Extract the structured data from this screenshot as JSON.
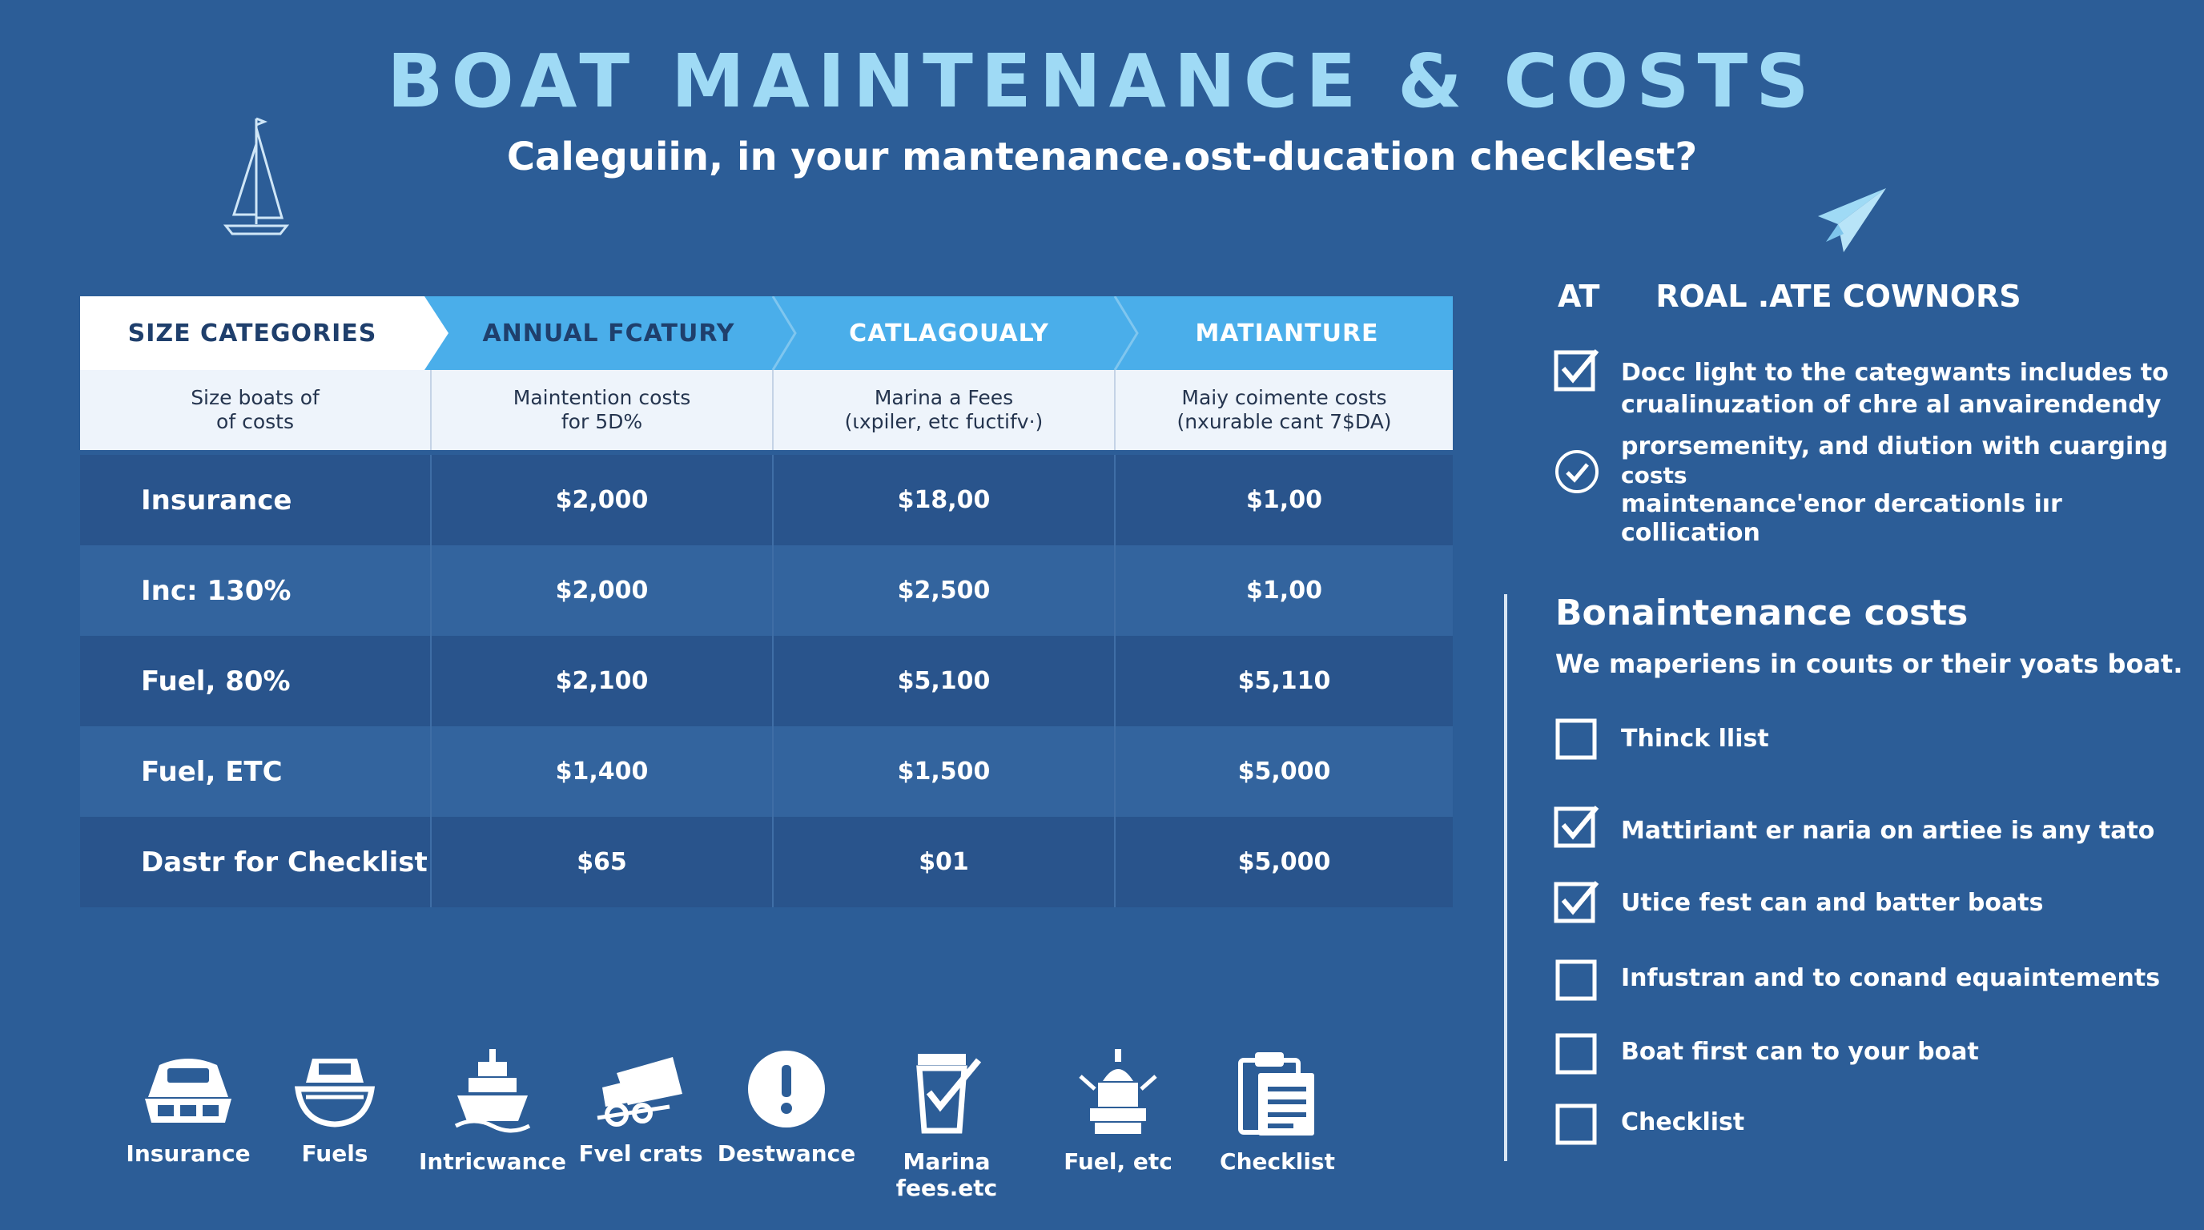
{
  "header": {
    "title": "BOAT MAINTENANCE & COSTS",
    "subtitle": "Caleguiin, in your mantenance.ost-ducation checklest?"
  },
  "table": {
    "headers": [
      "SIZE CATEGORIES",
      "ANNUAL FCATURY",
      "CATLAGOUALY",
      "MATIANTURE"
    ],
    "subheaders": [
      [
        "Size boats of",
        "of costs"
      ],
      [
        "Maintention costs",
        "for 5D%"
      ],
      [
        "Marina a Fees",
        "(ιxpiler, etc fuctifv·)"
      ],
      [
        "Maiy coimente costs",
        "(nxurable cant 7$DA)"
      ]
    ],
    "rows": [
      {
        "label": "Insurance",
        "values": [
          "$2,000",
          "$18,00",
          "$1,00"
        ]
      },
      {
        "label": "Inc: 130%",
        "values": [
          "$2,000",
          "$2,500",
          "$1,00"
        ]
      },
      {
        "label": "Fuel, 80%",
        "values": [
          "$2,100",
          "$5,100",
          "$5,110"
        ]
      },
      {
        "label": "Fuel, ETC",
        "values": [
          "$1,400",
          "$1,500",
          "$5,000"
        ]
      },
      {
        "label": "Dastr for Checklist",
        "values": [
          "$65",
          "$01",
          "$5,000"
        ]
      }
    ]
  },
  "right_panel": {
    "heading_a": "AT",
    "heading_b": "ROAL .ATE COWNORS",
    "top_items": [
      {
        "text_lines": [
          "Docc light to the categwants includes to",
          "crualinuzation of chre al anvairendendy"
        ],
        "icon": "checked-box-icon"
      },
      {
        "text_lines": [
          "prorsemenity, and diution with cuarging",
          "costs",
          "maintenance'enor dercationls iır collication"
        ],
        "icon": "check-circle-icon"
      }
    ],
    "maintenance_heading": "Bonaintenance costs",
    "maintenance_sub": "We maperiens in couıts or their yoats boat.",
    "checklist": [
      {
        "text": "Thinck llist",
        "checked": false
      },
      {
        "text": "Mattiriant er naria on artiee is any tato",
        "checked": true
      },
      {
        "text": "Utice fest can and batter boats",
        "checked": true
      },
      {
        "text": "Infustran and to conand equaintements",
        "checked": false
      },
      {
        "text": "Boat first can to your boat",
        "checked": false
      },
      {
        "text": "Checklist",
        "checked": false
      }
    ]
  },
  "bottom_icons": [
    {
      "label": "Insurance",
      "icon": "boat-front-icon"
    },
    {
      "label": "Fuels",
      "icon": "boat-hull-icon"
    },
    {
      "label": "Intricwance",
      "icon": "ship-icon"
    },
    {
      "label": "Fvel crats",
      "icon": "fuel-cart-icon"
    },
    {
      "label": "Destwance",
      "icon": "alert-icon"
    },
    {
      "label": "Marina fees.etc",
      "icon": "bucket-check-icon"
    },
    {
      "label": "Fuel, etc",
      "icon": "buoy-icon"
    },
    {
      "label": "Checklist",
      "icon": "clipboard-icon"
    }
  ]
}
